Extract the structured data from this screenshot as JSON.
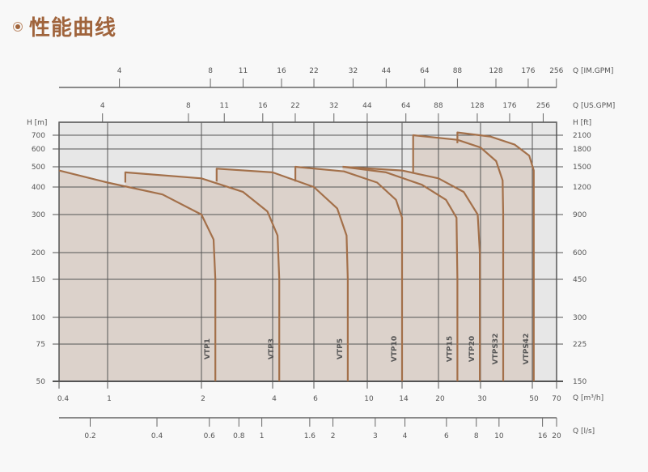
{
  "header": {
    "title": "性能曲线",
    "icon": "radio-bullet-icon"
  },
  "chart_data": {
    "type": "line",
    "xlabel": "Q [m³/h]",
    "xscale": "log",
    "xlim": [
      0.4,
      70
    ],
    "x_ticks": [
      0.4,
      1,
      2,
      4,
      6,
      10,
      14,
      20,
      30,
      50,
      70
    ],
    "ylabel": "H [m]",
    "yscale": "log",
    "ylim": [
      50,
      800
    ],
    "y_ticks": [
      50,
      75,
      100,
      150,
      200,
      300,
      400,
      500,
      600,
      700
    ],
    "ylabel_right": "H [ft]",
    "y_ticks_right": [
      "150",
      "225",
      "300",
      "450",
      "600",
      "900",
      "1200",
      "1500",
      "1800",
      "2100"
    ],
    "top_axis_imgpm": {
      "label": "Q [IM.GPM]",
      "ticks": [
        4,
        8,
        11,
        16,
        22,
        32,
        44,
        64,
        88,
        128,
        176,
        256
      ]
    },
    "top_axis_usgpm": {
      "label": "Q [US.GPM]",
      "ticks": [
        4,
        8,
        11,
        16,
        22,
        32,
        44,
        64,
        88,
        128,
        176,
        256
      ]
    },
    "bottom_axis_ls": {
      "label": "Q [l/s]",
      "ticks": [
        0.2,
        0.4,
        0.6,
        0.8,
        1,
        1.6,
        2,
        3,
        4,
        6,
        8,
        10,
        16,
        20
      ]
    },
    "grid": true,
    "colors": {
      "curve": "#a3704a",
      "fill": "#dcd2cb",
      "plot_bg": "#e7e7e7",
      "grid": "#555555"
    },
    "series": [
      {
        "name": "VTP1",
        "points": [
          [
            0.4,
            480
          ],
          [
            1,
            420
          ],
          [
            1.5,
            370
          ],
          [
            2,
            300
          ],
          [
            2.25,
            230
          ],
          [
            2.29,
            150
          ],
          [
            2.29,
            50
          ]
        ]
      },
      {
        "name": "VTP3",
        "points": [
          [
            1.14,
            420
          ],
          [
            1.14,
            470
          ],
          [
            2,
            440
          ],
          [
            3,
            380
          ],
          [
            3.8,
            310
          ],
          [
            4.2,
            240
          ],
          [
            4.27,
            150
          ],
          [
            4.27,
            50
          ]
        ]
      },
      {
        "name": "VTP5",
        "points": [
          [
            2.32,
            425
          ],
          [
            2.32,
            490
          ],
          [
            4,
            470
          ],
          [
            6,
            400
          ],
          [
            7.5,
            320
          ],
          [
            8.2,
            240
          ],
          [
            8.3,
            150
          ],
          [
            8.3,
            50
          ]
        ]
      },
      {
        "name": "VTP10",
        "points": [
          [
            5,
            425
          ],
          [
            5,
            500
          ],
          [
            8,
            475
          ],
          [
            11,
            420
          ],
          [
            13.2,
            350
          ],
          [
            14,
            290
          ],
          [
            14,
            150
          ],
          [
            14,
            50
          ]
        ]
      },
      {
        "name": "VTP15",
        "points": [
          [
            7.9,
            500
          ],
          [
            12,
            470
          ],
          [
            17,
            410
          ],
          [
            21.5,
            350
          ],
          [
            23.8,
            290
          ],
          [
            24,
            150
          ],
          [
            24,
            50
          ]
        ]
      },
      {
        "name": "VTP20",
        "points": [
          [
            7.9,
            500
          ],
          [
            14,
            480
          ],
          [
            20,
            440
          ],
          [
            25.5,
            380
          ],
          [
            29.2,
            300
          ],
          [
            29.8,
            200
          ],
          [
            29.8,
            50
          ]
        ]
      },
      {
        "name": "VTPS32",
        "points": [
          [
            15.6,
            470
          ],
          [
            15.6,
            700
          ],
          [
            24,
            665
          ],
          [
            30,
            610
          ],
          [
            35,
            530
          ],
          [
            37.3,
            430
          ],
          [
            37.5,
            300
          ],
          [
            37.5,
            50
          ]
        ]
      },
      {
        "name": "VTPS42",
        "points": [
          [
            24,
            640
          ],
          [
            24,
            720
          ],
          [
            33,
            690
          ],
          [
            42,
            630
          ],
          [
            48.5,
            560
          ],
          [
            51,
            480
          ],
          [
            51,
            300
          ],
          [
            51,
            50
          ]
        ]
      }
    ]
  }
}
